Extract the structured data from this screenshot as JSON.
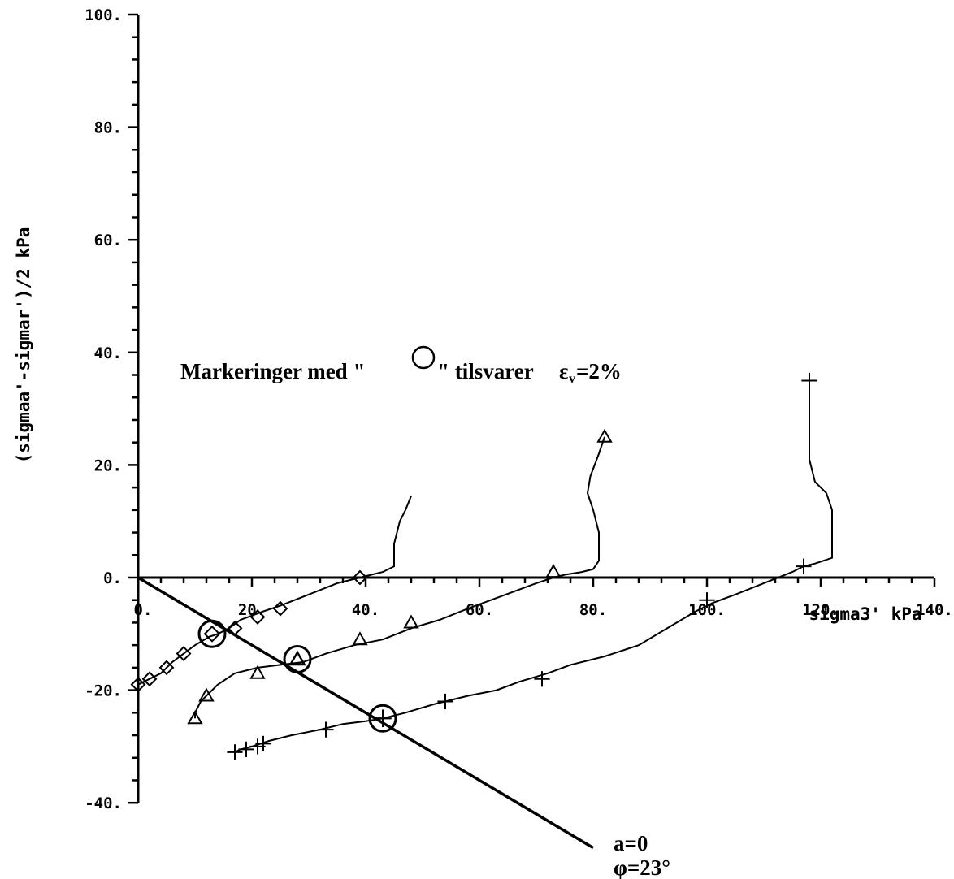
{
  "chart_data": {
    "type": "line",
    "title": "",
    "xlabel": "sigma3' kPa",
    "ylabel": "(sigmaa'-sigmar')/2 kPa",
    "xlim": [
      0,
      140
    ],
    "ylim": [
      -40,
      100
    ],
    "x_ticks": [
      "0.",
      "20.",
      "40.",
      "60.",
      "80.",
      "100.",
      "120.",
      "140."
    ],
    "y_ticks": [
      "100.",
      "80.",
      "60.",
      "40.",
      "20.",
      "0.",
      "-20.",
      "-40."
    ],
    "grid": false,
    "annotation": {
      "prefix": "Markeringer med \"",
      "suffix": "\" tilsvarer",
      "symbol": "ε",
      "subscript": "v",
      "equals": "=2%"
    },
    "envelope": {
      "label_a": "a=0",
      "label_phi": "φ=23°",
      "points": [
        [
          0,
          0
        ],
        [
          80,
          -48
        ]
      ]
    },
    "series": [
      {
        "marker": "diamond",
        "points": [
          [
            0,
            -20
          ],
          [
            0,
            -19
          ],
          [
            1,
            -18.5
          ],
          [
            2,
            -18
          ],
          [
            3,
            -17.5
          ],
          [
            4,
            -17
          ],
          [
            5,
            -16
          ],
          [
            6,
            -15
          ],
          [
            8,
            -13.5
          ],
          [
            10,
            -12
          ],
          [
            12.5,
            -10.5
          ],
          [
            14,
            -10
          ],
          [
            16,
            -9
          ],
          [
            18,
            -7.5
          ],
          [
            22,
            -6
          ],
          [
            25,
            -5
          ],
          [
            30,
            -3
          ],
          [
            35,
            -1
          ],
          [
            39,
            0
          ],
          [
            41,
            0.5
          ],
          [
            43,
            1
          ],
          [
            44,
            1.5
          ],
          [
            45,
            2
          ],
          [
            45,
            4
          ],
          [
            45,
            6
          ],
          [
            45.5,
            8
          ],
          [
            46,
            10
          ],
          [
            47,
            12
          ],
          [
            48,
            14.5
          ]
        ],
        "marker_points": [
          [
            0,
            -19
          ],
          [
            2,
            -18
          ],
          [
            5,
            -16
          ],
          [
            8,
            -13.5
          ],
          [
            17,
            -9
          ],
          [
            21,
            -7
          ],
          [
            25,
            -5.5
          ],
          [
            39,
            0
          ]
        ]
      },
      {
        "marker": "triangle",
        "points": [
          [
            10,
            -25
          ],
          [
            10,
            -24
          ],
          [
            10.5,
            -23
          ],
          [
            11,
            -22
          ],
          [
            12,
            -21
          ],
          [
            14,
            -19
          ],
          [
            17,
            -17
          ],
          [
            21,
            -16
          ],
          [
            25,
            -15.5
          ],
          [
            29,
            -15
          ],
          [
            33,
            -13.5
          ],
          [
            38,
            -12
          ],
          [
            43,
            -11
          ],
          [
            48,
            -9
          ],
          [
            53,
            -7.5
          ],
          [
            58,
            -5.5
          ],
          [
            62,
            -4
          ],
          [
            66,
            -2.5
          ],
          [
            70,
            -1
          ],
          [
            73,
            0
          ],
          [
            75,
            0.5
          ],
          [
            78,
            1
          ],
          [
            80,
            1.5
          ],
          [
            81,
            3
          ],
          [
            81,
            8
          ],
          [
            80,
            12
          ],
          [
            79,
            15
          ],
          [
            79.5,
            18
          ],
          [
            81,
            22
          ],
          [
            82,
            25
          ]
        ],
        "marker_points": [
          [
            10,
            -25
          ],
          [
            12,
            -21
          ],
          [
            21,
            -17
          ],
          [
            28,
            -14.5
          ],
          [
            39,
            -11
          ],
          [
            48,
            -8
          ],
          [
            73,
            1
          ],
          [
            82,
            25
          ]
        ]
      },
      {
        "marker": "cross",
        "points": [
          [
            17,
            -31
          ],
          [
            18,
            -30.5
          ],
          [
            20,
            -30
          ],
          [
            23,
            -29
          ],
          [
            27,
            -28
          ],
          [
            32,
            -27
          ],
          [
            36,
            -26
          ],
          [
            40,
            -25.5
          ],
          [
            43,
            -25
          ],
          [
            47,
            -24
          ],
          [
            52,
            -22.5
          ],
          [
            58,
            -21
          ],
          [
            63,
            -20
          ],
          [
            67,
            -18.5
          ],
          [
            72,
            -17
          ],
          [
            76,
            -15.5
          ],
          [
            82,
            -14
          ],
          [
            88,
            -12
          ],
          [
            93,
            -9
          ],
          [
            98,
            -6
          ],
          [
            101,
            -4.5
          ],
          [
            105,
            -3
          ],
          [
            110,
            -1
          ],
          [
            115,
            1
          ],
          [
            117,
            2
          ],
          [
            119,
            2.5
          ],
          [
            122,
            3.5
          ],
          [
            122,
            8
          ],
          [
            122,
            12
          ],
          [
            121,
            15
          ],
          [
            119,
            17
          ],
          [
            118,
            21
          ],
          [
            118,
            26
          ],
          [
            118,
            30
          ],
          [
            118,
            35
          ]
        ],
        "marker_points": [
          [
            17,
            -31
          ],
          [
            19,
            -30.5
          ],
          [
            21,
            -30
          ],
          [
            22,
            -29.5
          ],
          [
            33,
            -27
          ],
          [
            43,
            -25
          ],
          [
            54,
            -22
          ],
          [
            71,
            -18
          ],
          [
            100,
            -4
          ],
          [
            117,
            2
          ],
          [
            118,
            35
          ]
        ]
      }
    ],
    "circle_marks": [
      {
        "x": 13,
        "y": -10,
        "inner": "diamond"
      },
      {
        "x": 28,
        "y": -14.5,
        "inner": "triangle"
      },
      {
        "x": 43,
        "y": -25,
        "inner": "cross"
      }
    ]
  }
}
